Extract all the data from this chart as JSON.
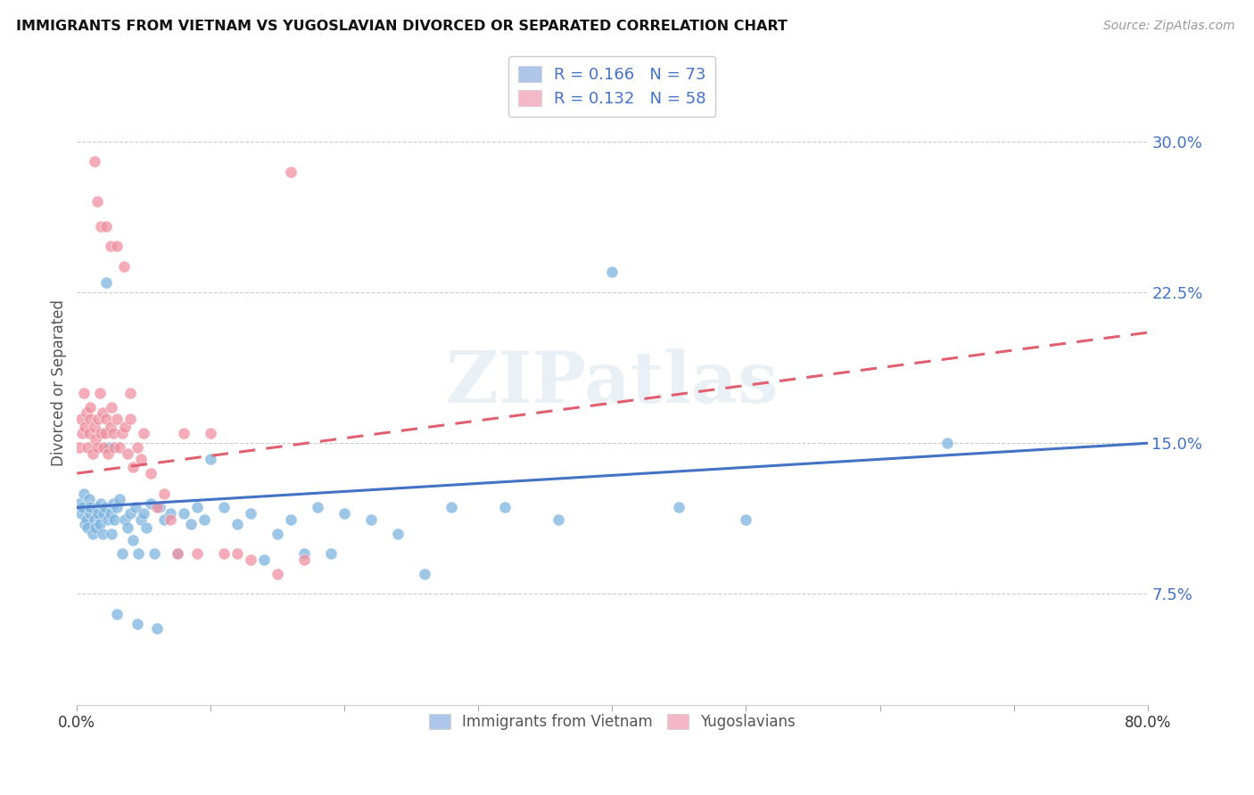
{
  "title": "IMMIGRANTS FROM VIETNAM VS YUGOSLAVIAN DIVORCED OR SEPARATED CORRELATION CHART",
  "source": "Source: ZipAtlas.com",
  "ylabel": "Divorced or Separated",
  "yticks": [
    "7.5%",
    "15.0%",
    "22.5%",
    "30.0%"
  ],
  "ytick_vals": [
    0.075,
    0.15,
    0.225,
    0.3
  ],
  "xlim": [
    0.0,
    0.8
  ],
  "ylim": [
    0.02,
    0.34
  ],
  "legend_entries": [
    {
      "label": "R = 0.166   N = 73",
      "color": "#aec6e8"
    },
    {
      "label": "R = 0.132   N = 58",
      "color": "#f4b8c1"
    }
  ],
  "legend_labels_bottom": [
    "Immigrants from Vietnam",
    "Yugoslavians"
  ],
  "blue_color": "#7eb5e0",
  "pink_color": "#f090a0",
  "blue_line_color": "#4472c4",
  "pink_line_color": "#e06070",
  "watermark": "ZIPatlas",
  "blue_scatter_x": [
    0.002,
    0.003,
    0.004,
    0.005,
    0.006,
    0.007,
    0.008,
    0.009,
    0.01,
    0.01,
    0.012,
    0.013,
    0.014,
    0.015,
    0.016,
    0.017,
    0.018,
    0.019,
    0.02,
    0.021,
    0.022,
    0.023,
    0.024,
    0.025,
    0.026,
    0.027,
    0.028,
    0.03,
    0.032,
    0.034,
    0.036,
    0.038,
    0.04,
    0.042,
    0.044,
    0.046,
    0.048,
    0.05,
    0.052,
    0.055,
    0.058,
    0.062,
    0.065,
    0.07,
    0.075,
    0.08,
    0.085,
    0.09,
    0.095,
    0.1,
    0.11,
    0.12,
    0.13,
    0.14,
    0.15,
    0.16,
    0.17,
    0.18,
    0.19,
    0.2,
    0.22,
    0.24,
    0.26,
    0.28,
    0.32,
    0.36,
    0.4,
    0.45,
    0.5,
    0.65,
    0.03,
    0.045,
    0.06
  ],
  "blue_scatter_y": [
    0.12,
    0.115,
    0.118,
    0.125,
    0.11,
    0.112,
    0.108,
    0.122,
    0.115,
    0.118,
    0.105,
    0.112,
    0.108,
    0.118,
    0.115,
    0.11,
    0.12,
    0.105,
    0.115,
    0.118,
    0.23,
    0.112,
    0.148,
    0.115,
    0.105,
    0.12,
    0.112,
    0.118,
    0.122,
    0.095,
    0.112,
    0.108,
    0.115,
    0.102,
    0.118,
    0.095,
    0.112,
    0.115,
    0.108,
    0.12,
    0.095,
    0.118,
    0.112,
    0.115,
    0.095,
    0.115,
    0.11,
    0.118,
    0.112,
    0.142,
    0.118,
    0.11,
    0.115,
    0.092,
    0.105,
    0.112,
    0.095,
    0.118,
    0.095,
    0.115,
    0.112,
    0.105,
    0.085,
    0.118,
    0.118,
    0.112,
    0.235,
    0.118,
    0.112,
    0.15,
    0.065,
    0.06,
    0.058
  ],
  "pink_scatter_x": [
    0.002,
    0.003,
    0.004,
    0.005,
    0.006,
    0.007,
    0.008,
    0.009,
    0.01,
    0.01,
    0.012,
    0.013,
    0.014,
    0.015,
    0.016,
    0.017,
    0.018,
    0.019,
    0.02,
    0.021,
    0.022,
    0.023,
    0.025,
    0.026,
    0.027,
    0.028,
    0.03,
    0.032,
    0.034,
    0.036,
    0.038,
    0.04,
    0.042,
    0.045,
    0.048,
    0.05,
    0.055,
    0.06,
    0.065,
    0.07,
    0.075,
    0.08,
    0.09,
    0.1,
    0.11,
    0.12,
    0.13,
    0.15,
    0.16,
    0.17,
    0.013,
    0.015,
    0.018,
    0.022,
    0.025,
    0.03,
    0.035,
    0.04
  ],
  "pink_scatter_y": [
    0.148,
    0.162,
    0.155,
    0.175,
    0.158,
    0.165,
    0.148,
    0.155,
    0.162,
    0.168,
    0.145,
    0.158,
    0.152,
    0.148,
    0.162,
    0.175,
    0.155,
    0.165,
    0.148,
    0.155,
    0.162,
    0.145,
    0.158,
    0.168,
    0.155,
    0.148,
    0.162,
    0.148,
    0.155,
    0.158,
    0.145,
    0.162,
    0.138,
    0.148,
    0.142,
    0.155,
    0.135,
    0.118,
    0.125,
    0.112,
    0.095,
    0.155,
    0.095,
    0.155,
    0.095,
    0.095,
    0.092,
    0.085,
    0.285,
    0.092,
    0.29,
    0.27,
    0.258,
    0.258,
    0.248,
    0.248,
    0.238,
    0.175
  ]
}
